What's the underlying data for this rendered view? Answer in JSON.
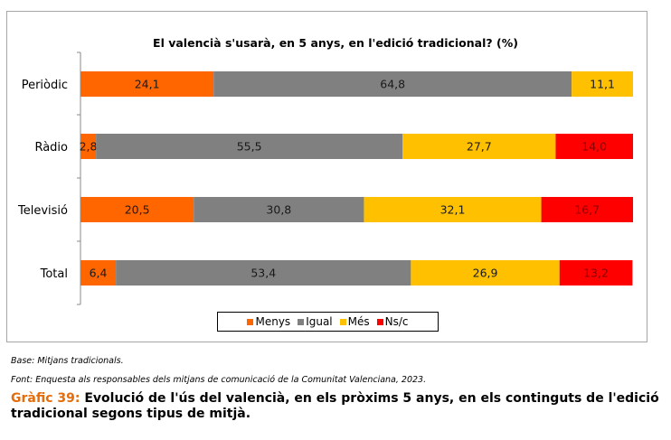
{
  "chart_data": {
    "type": "bar",
    "orientation": "horizontal",
    "stacked": true,
    "title": "El valencià s'usarà, en 5 anys, en l'edició tradicional? (%)",
    "categories": [
      "Periòdic",
      "Ràdio",
      "Televisió",
      "Total"
    ],
    "series": [
      {
        "name": "Menys",
        "color": "#ff6600",
        "values": [
          24.1,
          2.8,
          20.5,
          6.4
        ],
        "labels": [
          "24,1",
          "2,8",
          "20,5",
          "6,4"
        ]
      },
      {
        "name": "Igual",
        "color": "#808080",
        "values": [
          64.8,
          55.5,
          30.8,
          53.4
        ],
        "labels": [
          "64,8",
          "55,5",
          "30,8",
          "53,4"
        ]
      },
      {
        "name": "Més",
        "color": "#ffc000",
        "values": [
          11.1,
          27.7,
          32.1,
          26.9
        ],
        "labels": [
          "11,1",
          "27,7",
          "32,1",
          "26,9"
        ]
      },
      {
        "name": "Ns/c",
        "color": "#ff0000",
        "values": [
          0,
          14.0,
          16.7,
          13.2
        ],
        "labels": [
          "",
          "14,0",
          "16,7",
          "13,2"
        ]
      }
    ],
    "xlim": [
      0,
      100
    ],
    "legend_position": "bottom",
    "grid": false
  },
  "notes": {
    "base": "Base: Mitjans tradicionals.",
    "source": "Font: Enquesta als responsables dels mitjans de comunicació de la Comunitat Valenciana, 2023."
  },
  "caption": {
    "lead": "Gràfic 39:",
    "text": " Evolució de l'ús del valencià, en els pròxims 5 anys, en els continguts de l'edició tradicional segons tipus de mitjà."
  }
}
